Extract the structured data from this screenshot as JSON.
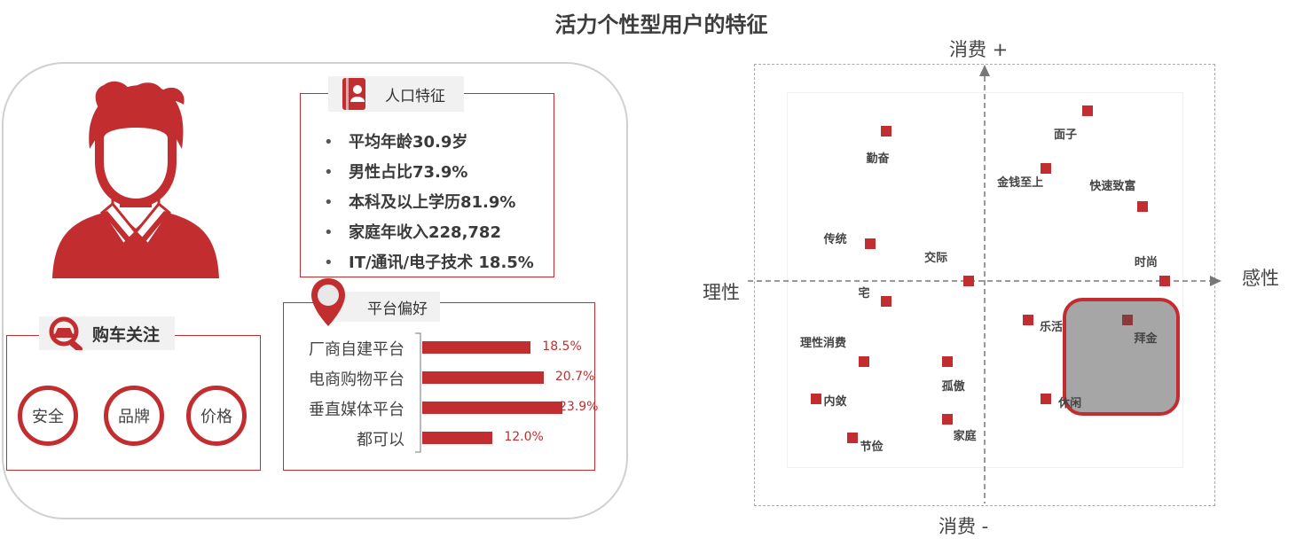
{
  "title": "活力个性型用户的特征",
  "demographics": {
    "tab_label": "人口特征",
    "items": [
      "平均年龄30.9岁",
      "男性占比73.9%",
      "本科及以上学历81.9%",
      "家庭年收入228,782",
      "IT/通讯/电子技术 18.5%"
    ]
  },
  "car_focus": {
    "tab_label": "购车关注",
    "items": [
      "安全",
      "品牌",
      "价格"
    ]
  },
  "platform": {
    "tab_label": "平台偏好",
    "categories": [
      "厂商自建平台",
      "电商购物平台",
      "垂直媒体平台",
      "都可以"
    ],
    "values": [
      18.5,
      20.7,
      23.9,
      12.0
    ],
    "value_labels": [
      "18.5%",
      "20.7%",
      "23.9%",
      "12.0%"
    ]
  },
  "chart_data": {
    "type": "scatter",
    "x_axis": {
      "negative_label": "理性",
      "positive_label": "感性"
    },
    "y_axis": {
      "positive_label": "消费  +",
      "negative_label": "消费  -"
    },
    "xlim": [
      -1,
      1
    ],
    "ylim": [
      -1,
      1
    ],
    "points": [
      {
        "label": "面子",
        "x": 0.52,
        "y": 0.91,
        "highlight": false
      },
      {
        "label": "勤奋",
        "x": -0.5,
        "y": 0.8,
        "highlight": false
      },
      {
        "label": "金钱至上",
        "x": 0.31,
        "y": 0.6,
        "highlight": false
      },
      {
        "label": "快速致富",
        "x": 0.8,
        "y": 0.4,
        "highlight": false
      },
      {
        "label": "传统",
        "x": -0.58,
        "y": 0.2,
        "highlight": false
      },
      {
        "label": "交际",
        "x": -0.08,
        "y": 0.0,
        "highlight": false
      },
      {
        "label": "时尚",
        "x": 0.91,
        "y": 0.0,
        "highlight": false
      },
      {
        "label": "宅",
        "x": -0.5,
        "y": -0.11,
        "highlight": false
      },
      {
        "label": "乐活",
        "x": 0.22,
        "y": -0.21,
        "highlight": false
      },
      {
        "label": "拜金",
        "x": 0.72,
        "y": -0.21,
        "highlight": true
      },
      {
        "label": "理性消费",
        "x": -0.61,
        "y": -0.43,
        "highlight": false
      },
      {
        "label": "孤傲",
        "x": -0.19,
        "y": -0.43,
        "highlight": false
      },
      {
        "label": "内敛",
        "x": -0.85,
        "y": -0.63,
        "highlight": false
      },
      {
        "label": "休闲",
        "x": 0.31,
        "y": -0.63,
        "highlight": false
      },
      {
        "label": "家庭",
        "x": -0.19,
        "y": -0.74,
        "highlight": false
      },
      {
        "label": "节俭",
        "x": -0.67,
        "y": -0.84,
        "highlight": false
      }
    ]
  },
  "colors": {
    "accent": "#c22d2f",
    "highlight_fill": "#a6a6a6",
    "highlight_point": "#8a3a3c"
  }
}
